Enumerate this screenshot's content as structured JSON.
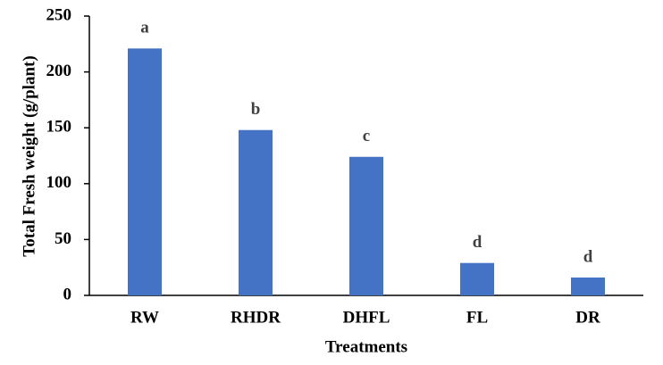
{
  "chart_data": {
    "type": "bar",
    "categories": [
      "RW",
      "RHDR",
      "DHFL",
      "FL",
      "DR"
    ],
    "values": [
      221,
      148,
      124,
      29,
      16
    ],
    "annotations": [
      "a",
      "b",
      "c",
      "d",
      "d"
    ],
    "color": "#4472c4",
    "xlabel": "Treatments",
    "ylabel": "Total Fresh weight (g/plant)",
    "ylim": [
      0,
      250
    ],
    "yticks": [
      0,
      50,
      100,
      150,
      200,
      250
    ],
    "grid": false
  }
}
